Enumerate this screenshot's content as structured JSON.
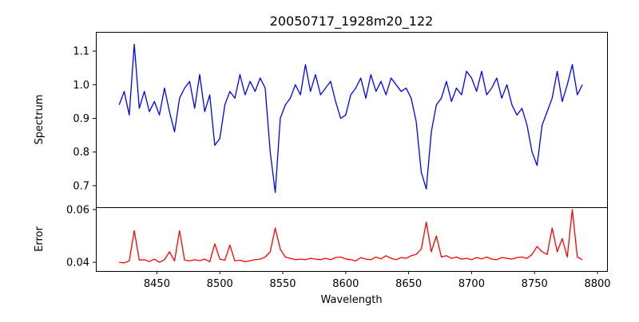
{
  "chart_data": [
    {
      "type": "line",
      "title": "20050717_1928m20_122",
      "xlabel": "",
      "ylabel": "Spectrum",
      "xlim": [
        8401.5,
        8807.6
      ],
      "ylim": [
        0.636,
        1.157
      ],
      "yticks": [
        0.7,
        0.8,
        0.9,
        1.0,
        1.1
      ],
      "ytick_labels": [
        "0.7",
        "0.8",
        "0.9",
        "1.0",
        "1.1"
      ],
      "grid": false,
      "series": [
        {
          "name": "Spectrum",
          "color": "#0000ff",
          "values": [
            0.94,
            0.98,
            0.91,
            1.12,
            0.93,
            0.98,
            0.92,
            0.95,
            0.91,
            0.99,
            0.92,
            0.86,
            0.96,
            0.99,
            1.01,
            0.93,
            1.03,
            0.92,
            0.97,
            0.82,
            0.84,
            0.94,
            0.98,
            0.96,
            1.03,
            0.97,
            1.01,
            0.98,
            1.02,
            0.99,
            0.8,
            0.68,
            0.9,
            0.94,
            0.96,
            1.0,
            0.97,
            1.06,
            0.98,
            1.03,
            0.97,
            0.99,
            1.01,
            0.95,
            0.9,
            0.91,
            0.97,
            0.99,
            1.02,
            0.96,
            1.03,
            0.98,
            1.01,
            0.97,
            1.02,
            1.0,
            0.98,
            0.99,
            0.96,
            0.89,
            0.74,
            0.69,
            0.86,
            0.94,
            0.96,
            1.01,
            0.95,
            0.99,
            0.97,
            1.04,
            1.02,
            0.98,
            1.04,
            0.97,
            0.99,
            1.02,
            0.96,
            1.0,
            0.94,
            0.91,
            0.93,
            0.88,
            0.8,
            0.76,
            0.88,
            0.92,
            0.96,
            1.04,
            0.95,
            1.0,
            1.06,
            0.97,
            1.0
          ]
        }
      ]
    },
    {
      "type": "line",
      "xlabel": "Wavelength",
      "ylabel": "Error",
      "xlim": [
        8401.5,
        8807.6
      ],
      "ylim": [
        0.0367,
        0.0609
      ],
      "xticks": [
        8450,
        8500,
        8550,
        8600,
        8650,
        8700,
        8750,
        8800
      ],
      "xtick_labels": [
        "8450",
        "8500",
        "8550",
        "8600",
        "8650",
        "8700",
        "8750",
        "8800"
      ],
      "yticks": [
        0.04,
        0.06
      ],
      "ytick_labels": [
        "0.04",
        "0.06"
      ],
      "grid": false,
      "series": [
        {
          "name": "Error",
          "color": "#ff0000",
          "values": [
            0.04,
            0.0398,
            0.0405,
            0.052,
            0.0408,
            0.041,
            0.0403,
            0.0412,
            0.04,
            0.041,
            0.044,
            0.0405,
            0.052,
            0.0408,
            0.0405,
            0.041,
            0.0406,
            0.0412,
            0.0402,
            0.047,
            0.0412,
            0.0408,
            0.0465,
            0.0405,
            0.0408,
            0.0402,
            0.0406,
            0.041,
            0.0412,
            0.042,
            0.044,
            0.053,
            0.045,
            0.042,
            0.0415,
            0.041,
            0.0412,
            0.041,
            0.0415,
            0.0412,
            0.041,
            0.0415,
            0.041,
            0.0418,
            0.042,
            0.0413,
            0.041,
            0.0405,
            0.0418,
            0.0412,
            0.041,
            0.042,
            0.0413,
            0.0425,
            0.0415,
            0.041,
            0.0418,
            0.0415,
            0.0425,
            0.043,
            0.045,
            0.0552,
            0.044,
            0.05,
            0.042,
            0.0425,
            0.0415,
            0.042,
            0.0412,
            0.0415,
            0.041,
            0.0418,
            0.0413,
            0.042,
            0.0412,
            0.041,
            0.0418,
            0.0415,
            0.0412,
            0.0418,
            0.042,
            0.0415,
            0.043,
            0.046,
            0.044,
            0.043,
            0.053,
            0.044,
            0.049,
            0.042,
            0.06,
            0.042,
            0.041
          ]
        }
      ]
    }
  ],
  "wavelength": [
    8420,
    8424,
    8428,
    8432,
    8436,
    8440,
    8444,
    8448,
    8452,
    8456,
    8460,
    8464,
    8468,
    8472,
    8476,
    8480,
    8484,
    8488,
    8492,
    8496,
    8500,
    8504,
    8508,
    8512,
    8516,
    8520,
    8524,
    8528,
    8532,
    8536,
    8540,
    8544,
    8548,
    8552,
    8556,
    8560,
    8564,
    8568,
    8572,
    8576,
    8580,
    8584,
    8588,
    8592,
    8596,
    8600,
    8604,
    8608,
    8612,
    8616,
    8620,
    8624,
    8628,
    8632,
    8636,
    8640,
    8644,
    8648,
    8652,
    8656,
    8660,
    8664,
    8668,
    8672,
    8676,
    8680,
    8684,
    8688,
    8692,
    8696,
    8700,
    8704,
    8708,
    8712,
    8716,
    8720,
    8724,
    8728,
    8732,
    8736,
    8740,
    8744,
    8748,
    8752,
    8756,
    8760,
    8764,
    8768,
    8772,
    8776,
    8780,
    8784,
    8788
  ]
}
